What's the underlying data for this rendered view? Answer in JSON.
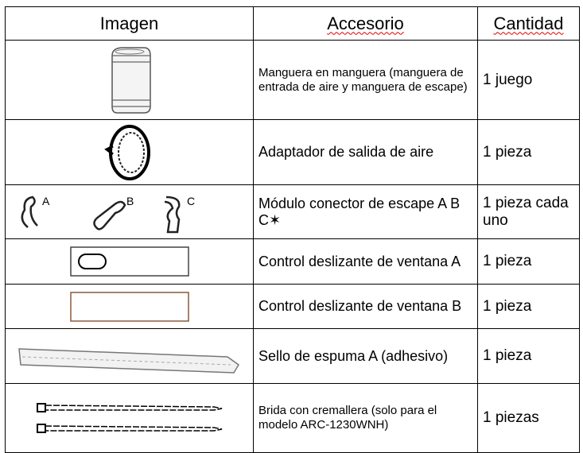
{
  "table": {
    "header": [
      "Imagen",
      "Accesorio",
      "Cantidad"
    ],
    "rows": [
      [
        "Manguera en manguera (manguera de entrada de aire y manguera de escape)",
        "1 juego"
      ],
      [
        "Adaptador de salida de aire",
        "1 pieza"
      ],
      [
        "Módulo conector de escape A B C✶",
        "1 pieza cada uno"
      ],
      [
        "Control deslizante de ventana A",
        "1 pieza"
      ],
      [
        "Control deslizante de ventana B",
        "1 pieza"
      ],
      [
        "Sello de espuma A (adhesivo)",
        "1 pieza"
      ],
      [
        "Brida con cremallera (solo para el modelo ARC-1230WNH)",
        "1 piezas"
      ]
    ],
    "image_labels": [
      "A",
      "B",
      "C"
    ]
  }
}
